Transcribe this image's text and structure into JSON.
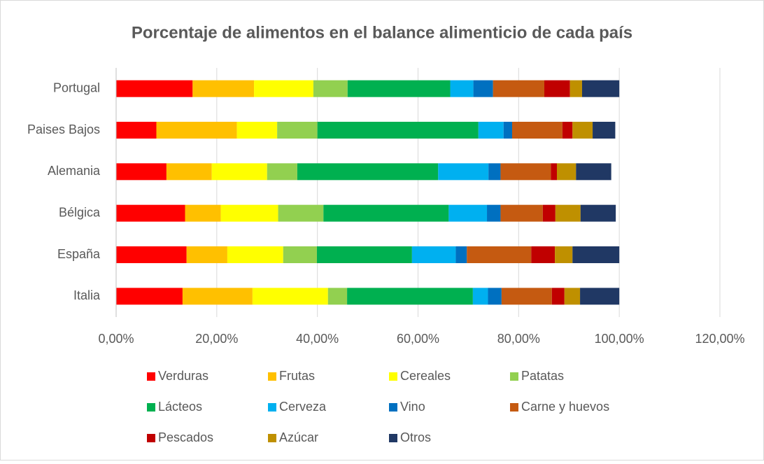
{
  "chart_data": {
    "type": "stacked_barh",
    "title": "Porcentaje de alimentos en el balance alimenticio de cada país",
    "categories": [
      "Italia",
      "España",
      "Bélgica",
      "Alemania",
      "Paises Bajos",
      "Portugal"
    ],
    "series": [
      {
        "name": "Verduras",
        "color": "#ff0000",
        "values": [
          13.2,
          14,
          13.7,
          10,
          8,
          15.2
        ]
      },
      {
        "name": "Frutas",
        "color": "#ffc000",
        "values": [
          13.9,
          8.1,
          7.1,
          9,
          16,
          12.2
        ]
      },
      {
        "name": "Cereales",
        "color": "#ffff00",
        "values": [
          15,
          11.1,
          11.4,
          11,
          8,
          11.8
        ]
      },
      {
        "name": "Patatas",
        "color": "#92d050",
        "values": [
          3.8,
          6.7,
          9,
          6,
          8,
          6.8
        ]
      },
      {
        "name": "Lácteos",
        "color": "#00b050",
        "values": [
          25,
          18.9,
          24.9,
          28,
          32,
          20.4
        ]
      },
      {
        "name": "Cerveza",
        "color": "#00b0f0",
        "values": [
          3,
          8.7,
          7.6,
          10,
          5,
          4.6
        ]
      },
      {
        "name": "Vino",
        "color": "#0070c0",
        "values": [
          2.7,
          2.2,
          2.7,
          2.4,
          1.7,
          3.9
        ]
      },
      {
        "name": "Carne y huevos",
        "color": "#c55a11",
        "values": [
          10,
          12.8,
          8.4,
          10,
          10,
          10.2
        ]
      },
      {
        "name": "Pescados",
        "color": "#c00000",
        "values": [
          2.5,
          4.7,
          2.5,
          1.2,
          2,
          5.1
        ]
      },
      {
        "name": "Azúcar",
        "color": "#bf9000",
        "values": [
          3.1,
          3.5,
          5,
          3.8,
          4,
          2.4
        ]
      },
      {
        "name": "Otros",
        "color": "#203864",
        "values": [
          7.8,
          9.3,
          7,
          7,
          4.5,
          7.4
        ]
      }
    ],
    "xlim": [
      0,
      120
    ],
    "xticks": [
      {
        "value": 0,
        "label": "0,00%"
      },
      {
        "value": 20,
        "label": "20,00%"
      },
      {
        "value": 40,
        "label": "40,00%"
      },
      {
        "value": 60,
        "label": "60,00%"
      },
      {
        "value": 80,
        "label": "80,00%"
      },
      {
        "value": 100,
        "label": "100,00%"
      },
      {
        "value": 120,
        "label": "120,00%"
      }
    ],
    "grid": true,
    "legend": "bottom"
  }
}
